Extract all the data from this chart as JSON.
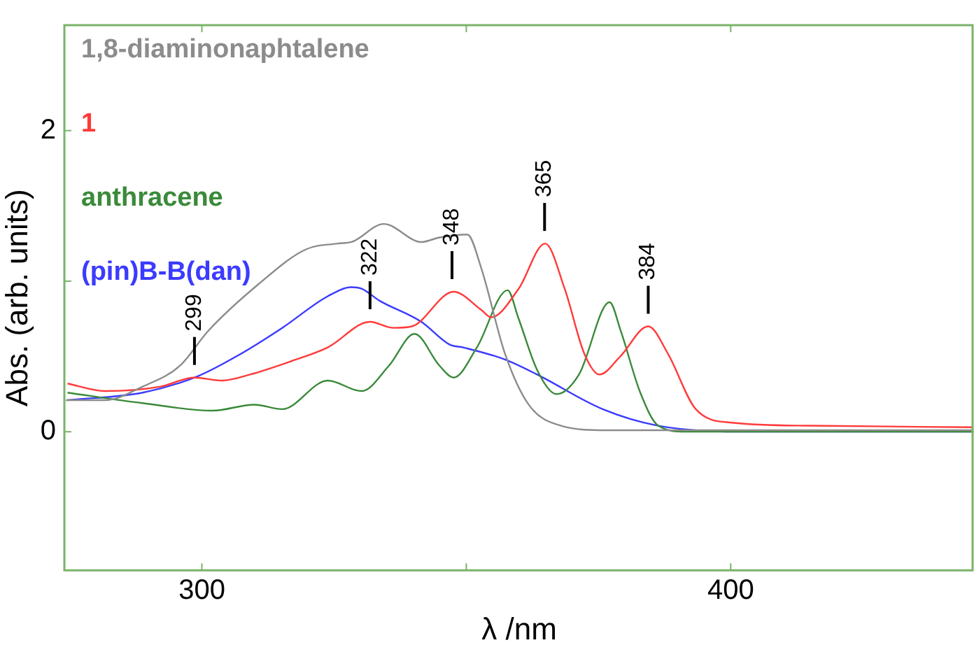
{
  "chart_data": {
    "type": "line",
    "xlabel": "λ /nm",
    "ylabel": "Abs. (arb. units)",
    "xlim": [
      274,
      446
    ],
    "ylim": [
      -0.92,
      2.7
    ],
    "xticks": [
      300,
      {
        "value": 350,
        "label": null
      },
      400
    ],
    "yticks": [
      0,
      {
        "value": 1,
        "label": null
      },
      2
    ],
    "legend": "top left",
    "series": [
      {
        "name": "1,8-diaminonaphtalene",
        "color": "#8c8c8c",
        "x": [
          274.3,
          281.7,
          288.8,
          295.9,
          301.2,
          310.7,
          319.6,
          325.7,
          328.3,
          334.4,
          341.5,
          344.9,
          350.2,
          352.8,
          357.3,
          361.8,
          367.9,
          376.6,
          400,
          445.9
        ],
        "values": [
          0.21,
          0.21,
          0.3,
          0.44,
          0.67,
          0.98,
          1.21,
          1.25,
          1.26,
          1.38,
          1.26,
          1.29,
          1.31,
          1.09,
          0.52,
          0.18,
          0.04,
          0.01,
          0.01,
          0.01
        ]
      },
      {
        "name": "1",
        "color": "#ff3b3b",
        "x": [
          274.6,
          281.7,
          292.2,
          298.6,
          303.8,
          309.1,
          317.0,
          323.8,
          331.8,
          336.2,
          339.7,
          347.6,
          352.8,
          354.7,
          359.9,
          364.9,
          368.6,
          372.3,
          375.2,
          379.1,
          384.4,
          388.1,
          393.4,
          400.3,
          415.3,
          445.9
        ],
        "values": [
          0.32,
          0.27,
          0.3,
          0.36,
          0.34,
          0.38,
          0.47,
          0.56,
          0.73,
          0.69,
          0.7,
          0.93,
          0.81,
          0.76,
          0.95,
          1.25,
          0.95,
          0.52,
          0.38,
          0.5,
          0.7,
          0.52,
          0.15,
          0.06,
          0.04,
          0.03
        ]
      },
      {
        "name": "anthracene",
        "color": "#3a8a3a",
        "x": [
          274.6,
          288.8,
          302.0,
          309.9,
          315.2,
          323.8,
          330.2,
          335.4,
          340.2,
          344.9,
          347.6,
          352.0,
          357.8,
          359.9,
          363.4,
          367.1,
          371.3,
          377.1,
          379.2,
          382.9,
          386.3,
          391.6,
          445.9
        ],
        "values": [
          0.26,
          0.19,
          0.14,
          0.18,
          0.15,
          0.34,
          0.27,
          0.44,
          0.65,
          0.44,
          0.36,
          0.56,
          0.94,
          0.75,
          0.41,
          0.25,
          0.38,
          0.86,
          0.67,
          0.26,
          0.04,
          0.0,
          0.0
        ]
      },
      {
        "name": "(pin)B-B(dan)",
        "color": "#3b3bff",
        "x": [
          274.6,
          288.8,
          299.3,
          306.5,
          315.2,
          323.8,
          328.3,
          330.2,
          333.6,
          341.5,
          346.8,
          349.4,
          357.3,
          363.4,
          375.8,
          386.3,
          402.1,
          445.9
        ],
        "values": [
          0.21,
          0.26,
          0.37,
          0.5,
          0.69,
          0.9,
          0.96,
          0.95,
          0.87,
          0.73,
          0.58,
          0.56,
          0.48,
          0.38,
          0.15,
          0.04,
          0.0,
          0.0
        ]
      }
    ],
    "annotations": [
      {
        "text": "299",
        "x": 298.6,
        "y": 0.36
      },
      {
        "text": "322",
        "x": 331.8,
        "y": 0.73
      },
      {
        "text": "348",
        "x": 347.3,
        "y": 0.93
      },
      {
        "text": "365",
        "x": 364.8,
        "y": 1.25
      },
      {
        "text": "384",
        "x": 384.4,
        "y": 0.7
      }
    ]
  }
}
